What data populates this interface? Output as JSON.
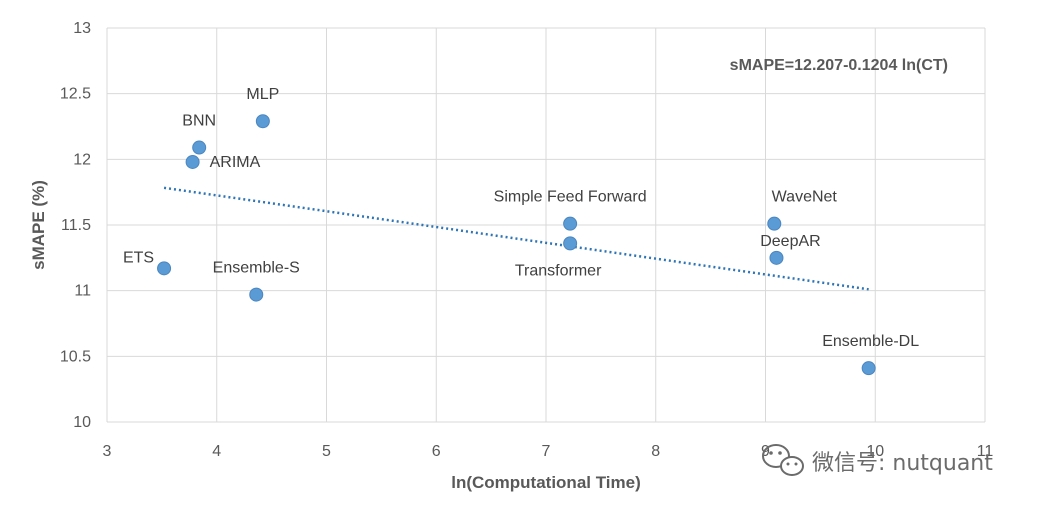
{
  "chart_data": {
    "type": "scatter",
    "xlabel": "ln(Computational Time)",
    "ylabel": "sMAPE (%)",
    "xlim": [
      3,
      11
    ],
    "ylim": [
      10,
      13
    ],
    "xticks": [
      3,
      4,
      5,
      6,
      7,
      8,
      9,
      10,
      11
    ],
    "yticks": [
      10,
      10.5,
      11,
      11.5,
      12,
      12.5,
      13
    ],
    "grid": true,
    "marker_color": "#5B9BD5",
    "trend_color": "#2E75B6",
    "points": [
      {
        "label": "MLP",
        "x": 4.42,
        "y": 12.29
      },
      {
        "label": "BNN",
        "x": 3.84,
        "y": 12.09
      },
      {
        "label": "ARIMA",
        "x": 3.78,
        "y": 11.98
      },
      {
        "label": "ETS",
        "x": 3.52,
        "y": 11.17
      },
      {
        "label": "Ensemble-S",
        "x": 4.36,
        "y": 10.97
      },
      {
        "label": "Simple Feed Forward",
        "x": 7.22,
        "y": 11.51
      },
      {
        "label": "Transformer",
        "x": 7.22,
        "y": 11.36
      },
      {
        "label": "WaveNet",
        "x": 9.08,
        "y": 11.51
      },
      {
        "label": "DeepAR",
        "x": 9.1,
        "y": 11.25
      },
      {
        "label": "Ensemble-DL",
        "x": 9.94,
        "y": 10.41
      }
    ],
    "trendline": {
      "equation": "sMAPE=12.207-0.1204 ln(CT)",
      "x_range": [
        3.52,
        9.94
      ]
    }
  },
  "watermark": {
    "text": "微信号: nutquant",
    "icon": "wechat-icon"
  }
}
